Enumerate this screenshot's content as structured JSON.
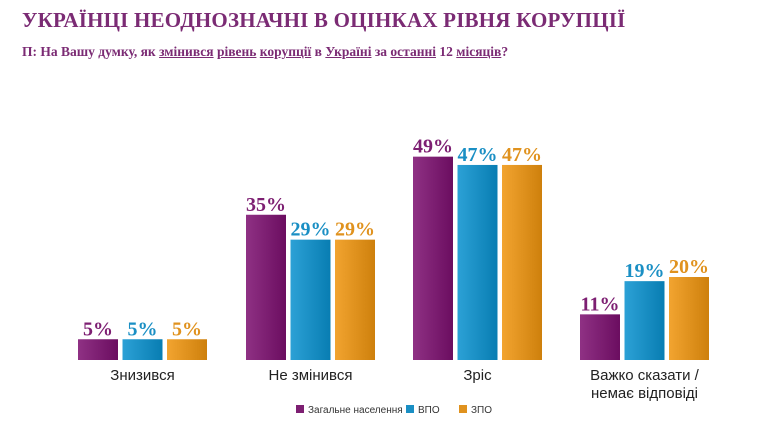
{
  "header": {
    "title": "УКРАЇНЦІ НЕОДНОЗНАЧНІ В ОЦІНКАХ РІВНЯ КОРУПЦІЇ",
    "question_parts": [
      {
        "text": "П: На Вашу думку, як ",
        "underline": false
      },
      {
        "text": "змінився",
        "underline": true
      },
      {
        "text": " ",
        "underline": false
      },
      {
        "text": "рівень",
        "underline": true
      },
      {
        "text": " ",
        "underline": false
      },
      {
        "text": "корупції",
        "underline": true
      },
      {
        "text": " в ",
        "underline": false
      },
      {
        "text": "Україні",
        "underline": true
      },
      {
        "text": " за ",
        "underline": false
      },
      {
        "text": "останні",
        "underline": true
      },
      {
        "text": " 12 ",
        "underline": false
      },
      {
        "text": "місяців",
        "underline": true
      },
      {
        "text": "?",
        "underline": false
      }
    ]
  },
  "colors": {
    "Загальне населення": "#7d1f72",
    "ВПО": "#1a8fc4",
    "ЗПО": "#e0921e"
  },
  "chart_data": {
    "type": "bar",
    "categories": [
      [
        "Знизився"
      ],
      [
        "Не змінився"
      ],
      [
        "Зріс"
      ],
      [
        "Важко сказати /",
        "немає відповіді"
      ]
    ],
    "series": [
      {
        "name": "Загальне населення",
        "values": [
          5,
          35,
          49,
          11
        ],
        "labels": [
          "5%",
          "35%",
          "49%",
          "11%"
        ]
      },
      {
        "name": "ВПО",
        "values": [
          5,
          29,
          47,
          19
        ],
        "labels": [
          "5%",
          "29%",
          "47%",
          "19%"
        ]
      },
      {
        "name": "ЗПО",
        "values": [
          5,
          29,
          47,
          20
        ],
        "labels": [
          "5%",
          "29%",
          "47%",
          "20%"
        ]
      }
    ],
    "ylim": [
      0,
      50
    ],
    "legend_position": "bottom-center",
    "grid": false
  }
}
